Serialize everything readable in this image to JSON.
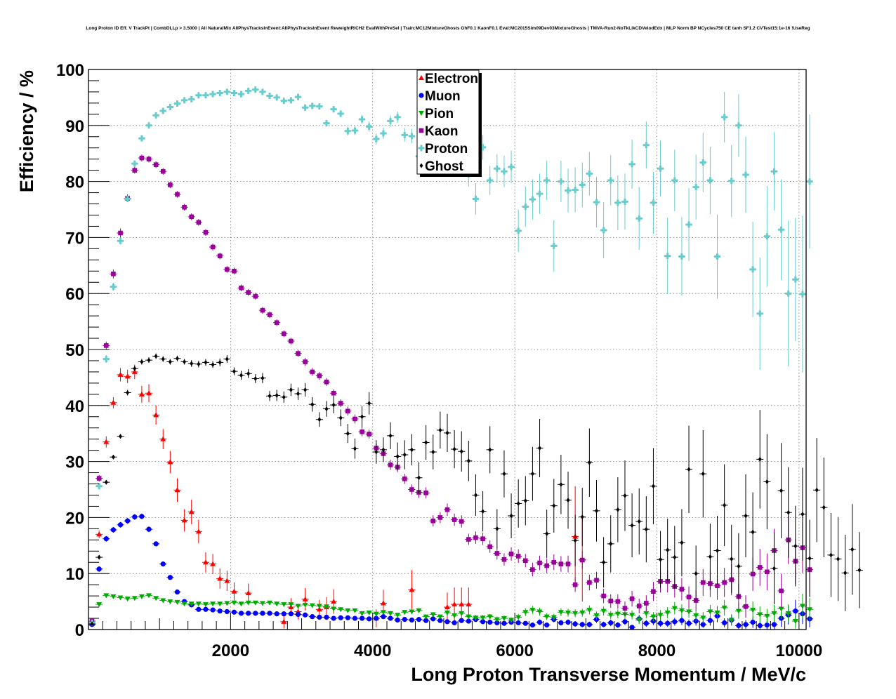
{
  "chart_data": {
    "type": "scatter",
    "title": "Long Proton ID Eff. V TrackPt | CombDLLp > 3.5000 | All NaturalMix AllPhysTracksInEvent:AllPhysTracksInEvent ReweightRICH2 EvalWithPreSel | Train:MC12MixtureGhosts GhF0.1 KaonF0.1 Eval:MC2015Sim09Dev03MixtureGhosts | TMVA-Run2-NoTkLikCDVelodEdx | MLP Norm BP NCycles750 CE tanh SF1.2 CVTest15:1e-16 !UseReg",
    "xlabel": "Long Proton Transverse Momentum / MeV/c",
    "ylabel": "Efficiency / %",
    "xlim": [
      0,
      10100
    ],
    "ylim": [
      0,
      100
    ],
    "xticks": [
      "2000",
      "4000",
      "6000",
      "8000",
      "10000"
    ],
    "yticks": [
      "0",
      "10",
      "20",
      "30",
      "40",
      "50",
      "60",
      "70",
      "80",
      "90",
      "100"
    ],
    "grid": true,
    "legend_position": "top-center",
    "bin_width": 100,
    "x_start": 50,
    "series": [
      {
        "name": "Electron",
        "color": "#ff0000",
        "marker": "triangle-up",
        "values": [
          1.0,
          17.0,
          33.5,
          40.5,
          45.5,
          45.2,
          46.0,
          42.0,
          42.2,
          38.3,
          34.0,
          29.9,
          24.9,
          19.5,
          21.0,
          17.5,
          12.0,
          11.7,
          9.1,
          8.7,
          6.8,
          null,
          6.5,
          null,
          null,
          null,
          null,
          1.4,
          4.0,
          3.2,
          5.4,
          null,
          3.6,
          4.0,
          5.0,
          null,
          null,
          null,
          null,
          null,
          2.0,
          4.7,
          null,
          null,
          null,
          7.1,
          null,
          null,
          null,
          null,
          4.0,
          4.5,
          4.5,
          4.5,
          null,
          null,
          null,
          null,
          null,
          null,
          null,
          null,
          null,
          null,
          null,
          null,
          null,
          null,
          16.6,
          12.5
        ],
        "errors": [
          0.5,
          0.7,
          1.0,
          1.0,
          1.2,
          1.2,
          1.3,
          1.5,
          1.6,
          1.7,
          1.8,
          2.0,
          2.1,
          2.0,
          2.2,
          2.1,
          1.8,
          1.8,
          1.8,
          1.8,
          1.6,
          0,
          1.7,
          0,
          0,
          0,
          0,
          1.2,
          1.6,
          1.4,
          2.0,
          0,
          1.7,
          1.8,
          2.2,
          0,
          0,
          0,
          0,
          0,
          1.6,
          2.4,
          0,
          0,
          0,
          3.5,
          0,
          0,
          0,
          0,
          2.6,
          3.0,
          3.0,
          3.0,
          0,
          0,
          0,
          0,
          0,
          0,
          0,
          0,
          0,
          0,
          0,
          0,
          0,
          0,
          9.0,
          7.5
        ]
      },
      {
        "name": "Muon",
        "color": "#0000ff",
        "marker": "circle",
        "values": [
          0.9,
          10.8,
          16.2,
          17.8,
          18.7,
          19.4,
          20.1,
          20.2,
          17.9,
          15.3,
          11.7,
          9.3,
          6.7,
          5.0,
          4.4,
          3.6,
          3.6,
          3.5,
          3.3,
          3.2,
          3.1,
          2.9,
          2.9,
          2.9,
          2.9,
          2.9,
          2.8,
          2.8,
          2.8,
          2.7,
          2.6,
          2.3,
          2.2,
          2.2,
          2.0,
          2.1,
          2.1,
          2.0,
          2.0,
          1.9,
          2.0,
          2.3,
          2.0,
          1.7,
          1.8,
          1.7,
          1.8,
          1.6,
          1.9,
          1.6,
          1.4,
          1.2,
          1.6,
          1.5,
          1.8,
          1.4,
          1.3,
          1.2,
          1.1,
          1.3,
          1.2,
          1.1,
          0.8,
          1.3,
          0.8,
          1.8,
          1.2,
          1.3,
          1.0,
          0.9,
          0.9,
          1.8,
          0.9,
          1.2,
          0.8,
          1.4,
          0.4,
          1.9,
          1.1,
          1.5,
          1.1,
          1.1,
          1.4,
          1.6,
          1.1,
          1.5,
          0.9,
          1.6,
          2.4,
          1.2,
          1.7,
          0.7,
          0.9,
          1.3,
          0.7,
          0.8,
          0.9,
          2.0,
          2.6,
          3.3,
          2.8,
          1.9
        ],
        "errors": [
          0.3,
          0.5,
          0.5,
          0.5,
          0.5,
          0.5,
          0.5,
          0.5,
          0.5,
          0.4,
          0.4,
          0.4,
          0.3,
          0.3,
          0.3,
          0.2,
          0.2,
          0.2,
          0.2,
          0.2,
          0.2,
          0.2,
          0.2,
          0.2,
          0.2,
          0.2,
          0.2,
          0.2,
          0.2,
          0.2,
          0.2,
          0.2,
          0.2,
          0.2,
          0.2,
          0.2,
          0.3,
          0.3,
          0.3,
          0.3,
          0.3,
          0.3,
          0.3,
          0.3,
          0.3,
          0.3,
          0.3,
          0.3,
          0.3,
          0.3,
          0.3,
          0.3,
          0.4,
          0.4,
          0.4,
          0.4,
          0.4,
          0.4,
          0.4,
          0.4,
          0.4,
          0.4,
          0.4,
          0.5,
          0.4,
          0.5,
          0.5,
          0.5,
          0.5,
          0.5,
          0.5,
          0.6,
          0.5,
          0.6,
          0.5,
          0.6,
          0.4,
          0.7,
          0.6,
          0.7,
          0.6,
          0.6,
          0.7,
          0.8,
          0.7,
          0.8,
          0.6,
          0.9,
          1.1,
          0.8,
          1.0,
          0.6,
          0.8,
          1.0,
          0.7,
          0.8,
          0.9,
          1.5,
          1.7,
          2.0,
          1.8,
          1.5
        ]
      },
      {
        "name": "Pion",
        "color": "#00aa00",
        "marker": "triangle-down",
        "values": [
          1.0,
          4.5,
          6.1,
          5.9,
          5.7,
          5.5,
          5.6,
          5.9,
          6.1,
          5.6,
          5.2,
          5.0,
          4.9,
          4.6,
          4.6,
          4.6,
          4.5,
          4.6,
          4.6,
          4.7,
          4.8,
          4.6,
          4.8,
          4.8,
          4.7,
          4.8,
          4.6,
          4.5,
          4.5,
          4.2,
          4.4,
          4.3,
          4.2,
          4.1,
          3.7,
          3.6,
          3.4,
          3.4,
          2.9,
          3.0,
          2.8,
          3.1,
          2.9,
          2.6,
          3.1,
          3.2,
          3.4,
          2.3,
          2.7,
          2.3,
          3.0,
          2.5,
          2.9,
          2.3,
          2.1,
          2.1,
          2.3,
          1.8,
          2.0,
          1.7,
          2.2,
          3.1,
          3.5,
          3.2,
          2.3,
          2.2,
          3.1,
          3.0,
          2.9,
          3.0,
          3.5,
          2.5,
          3.3,
          2.6,
          2.8,
          2.7,
          2.6,
          1.7,
          2.9,
          2.3,
          2.6,
          3.0,
          3.8,
          3.4,
          3.2,
          2.5,
          2.1,
          3.2,
          3.0,
          3.9,
          1.7,
          3.3,
          4.0,
          3.5,
          2.7,
          2.4,
          2.9,
          3.7,
          2.9,
          1.5,
          4.2,
          3.6
        ],
        "errors": [
          0.3,
          0.3,
          0.3,
          0.3,
          0.3,
          0.3,
          0.3,
          0.3,
          0.3,
          0.3,
          0.3,
          0.3,
          0.3,
          0.3,
          0.3,
          0.3,
          0.3,
          0.3,
          0.3,
          0.3,
          0.3,
          0.3,
          0.3,
          0.3,
          0.3,
          0.3,
          0.3,
          0.3,
          0.3,
          0.3,
          0.3,
          0.3,
          0.3,
          0.3,
          0.3,
          0.3,
          0.3,
          0.3,
          0.3,
          0.3,
          0.4,
          0.4,
          0.4,
          0.4,
          0.4,
          0.4,
          0.4,
          0.4,
          0.4,
          0.4,
          0.5,
          0.5,
          0.5,
          0.5,
          0.5,
          0.5,
          0.5,
          0.5,
          0.5,
          0.5,
          0.6,
          0.7,
          0.7,
          0.7,
          0.6,
          0.6,
          0.7,
          0.7,
          0.7,
          0.7,
          0.8,
          0.7,
          0.8,
          0.7,
          0.8,
          0.8,
          0.8,
          0.7,
          0.9,
          0.8,
          0.9,
          1.0,
          1.1,
          1.1,
          1.1,
          1.0,
          1.0,
          1.2,
          1.2,
          1.4,
          1.0,
          1.4,
          1.6,
          1.5,
          1.4,
          1.3,
          1.5,
          1.8,
          1.6,
          1.3,
          2.2,
          2.0
        ]
      },
      {
        "name": "Kaon",
        "color": "#990099",
        "marker": "square",
        "values": [
          1.5,
          27.0,
          50.7,
          63.5,
          70.8,
          77.0,
          82.0,
          84.2,
          84.0,
          83.0,
          81.8,
          79.4,
          77.7,
          75.4,
          73.7,
          72.7,
          70.9,
          68.3,
          66.7,
          64.3,
          64.0,
          61.0,
          60.2,
          59.5,
          57.0,
          56.2,
          54.8,
          52.8,
          51.5,
          49.3,
          47.8,
          46.0,
          45.3,
          44.2,
          42.2,
          40.4,
          39.0,
          37.6,
          35.3,
          34.9,
          32.4,
          31.4,
          29.4,
          29.0,
          26.9,
          25.0,
          24.5,
          24.4,
          19.4,
          20.0,
          21.4,
          19.6,
          19.3,
          16.1,
          16.4,
          16.2,
          14.8,
          13.6,
          12.5,
          13.5,
          13.1,
          12.3,
          10.7,
          11.9,
          11.4,
          12.0,
          11.7,
          11.7,
          8.0,
          12.4,
          8.4,
          8.8,
          6.0,
          5.1,
          5.0,
          3.8,
          5.5,
          4.2,
          4.7,
          6.8,
          8.6,
          8.6,
          7.7,
          7.2,
          5.8,
          5.2,
          8.4,
          8.2,
          7.8,
          8.4,
          8.9,
          5.9,
          4.1,
          9.9,
          11.1,
          10.3,
          14.1,
          6.9,
          16.0,
          12.2,
          14.6,
          10.7
        ],
        "errors": [
          0.4,
          0.6,
          0.7,
          0.8,
          0.8,
          0.7,
          0.6,
          0.6,
          0.6,
          0.6,
          0.6,
          0.6,
          0.6,
          0.6,
          0.6,
          0.6,
          0.6,
          0.6,
          0.6,
          0.6,
          0.6,
          0.6,
          0.6,
          0.6,
          0.6,
          0.6,
          0.6,
          0.6,
          0.6,
          0.6,
          0.7,
          0.7,
          0.7,
          0.7,
          0.7,
          0.7,
          0.8,
          0.8,
          0.8,
          0.8,
          0.8,
          0.8,
          0.9,
          0.9,
          0.9,
          0.9,
          1.0,
          1.0,
          1.0,
          1.0,
          1.1,
          1.1,
          1.1,
          1.0,
          1.1,
          1.1,
          1.1,
          1.1,
          1.1,
          1.2,
          1.2,
          1.2,
          1.2,
          1.3,
          1.3,
          1.4,
          1.4,
          1.5,
          1.3,
          1.6,
          1.4,
          1.5,
          1.3,
          1.2,
          1.3,
          1.2,
          1.4,
          1.3,
          1.4,
          1.7,
          2.0,
          2.0,
          2.0,
          2.0,
          1.9,
          1.8,
          2.4,
          2.4,
          2.5,
          2.6,
          2.8,
          2.3,
          2.0,
          3.0,
          3.3,
          3.3,
          3.9,
          3.0,
          4.3,
          4.0,
          4.5,
          4.0
        ]
      },
      {
        "name": "Proton",
        "color": "#66cccc",
        "marker": "cross",
        "values": [
          1.2,
          25.6,
          48.3,
          61.2,
          69.4,
          76.9,
          83.2,
          87.7,
          90.0,
          91.8,
          92.6,
          93.3,
          93.9,
          94.5,
          94.7,
          95.4,
          95.4,
          95.6,
          95.8,
          96.0,
          95.8,
          95.6,
          96.2,
          96.4,
          96.0,
          95.3,
          95.0,
          94.4,
          94.5,
          95.1,
          93.2,
          93.5,
          93.4,
          90.4,
          92.9,
          92.1,
          89.0,
          89.1,
          91.1,
          89.8,
          87.6,
          88.6,
          90.8,
          91.5,
          88.3,
          88.1,
          84.5,
          89.8,
          85.4,
          83.3,
          85.3,
          82.9,
          84.3,
          81.3,
          76.9,
          86.1,
          80.2,
          82.3,
          81.8,
          82.6,
          71.2,
          75.5,
          76.8,
          77.8,
          80.2,
          68.5,
          80.0,
          78.4,
          78.5,
          79.4,
          81.4,
          76.3,
          71.3,
          80.2,
          76.2,
          76.4,
          83.1,
          73.4,
          86.5,
          76.2,
          82.3,
          66.7,
          80.2,
          66.6,
          72.3,
          79.0,
          83.4,
          80.2,
          66.6,
          91.5,
          80.1,
          90.0,
          81.2,
          64.3,
          56.4,
          70.2,
          81.8,
          71.4,
          60.0,
          62.5,
          59.9,
          80.0
        ],
        "errors": [
          0.4,
          0.6,
          0.7,
          0.7,
          0.6,
          0.5,
          0.4,
          0.4,
          0.3,
          0.3,
          0.3,
          0.3,
          0.3,
          0.3,
          0.3,
          0.3,
          0.3,
          0.3,
          0.3,
          0.3,
          0.3,
          0.3,
          0.3,
          0.3,
          0.3,
          0.4,
          0.4,
          0.4,
          0.4,
          0.4,
          0.5,
          0.5,
          0.5,
          0.6,
          0.6,
          0.6,
          0.8,
          0.8,
          0.8,
          0.9,
          1.0,
          1.0,
          1.0,
          1.0,
          1.2,
          1.3,
          1.5,
          1.3,
          1.6,
          1.8,
          1.8,
          2.0,
          2.0,
          2.2,
          2.8,
          2.2,
          2.6,
          2.6,
          2.8,
          2.9,
          3.8,
          3.6,
          3.6,
          3.6,
          3.5,
          4.6,
          3.7,
          3.9,
          4.0,
          4.0,
          3.9,
          4.5,
          5.0,
          4.5,
          4.9,
          5.0,
          4.4,
          5.6,
          4.2,
          5.5,
          5.0,
          6.8,
          5.5,
          7.0,
          6.5,
          5.8,
          5.3,
          6.0,
          7.5,
          4.5,
          6.4,
          5.6,
          6.8,
          8.5,
          10.0,
          9.0,
          7.0,
          9.0,
          13.0,
          11.0,
          14.0,
          12.0
        ]
      },
      {
        "name": "Ghost",
        "color": "#000000",
        "marker": "diamond",
        "values": [
          1.0,
          12.9,
          26.3,
          30.8,
          34.5,
          42.3,
          46.6,
          47.8,
          48.1,
          48.8,
          48.3,
          47.8,
          48.4,
          47.8,
          47.5,
          47.4,
          47.7,
          47.3,
          47.7,
          48.3,
          46.1,
          45.4,
          45.7,
          44.8,
          44.9,
          41.7,
          41.8,
          41.5,
          42.8,
          42.1,
          42.8,
          40.2,
          37.5,
          39.4,
          40.1,
          37.8,
          35.0,
          32.3,
          38.0,
          40.4,
          31.7,
          32.1,
          34.6,
          30.9,
          31.2,
          32.1,
          27.1,
          33.4,
          31.7,
          35.6,
          35.1,
          32.2,
          31.8,
          30.1,
          24.0,
          21.1,
          32.1,
          18.0,
          27.8,
          20.3,
          22.5,
          23.0,
          27.8,
          32.4,
          17.1,
          22.1,
          25.9,
          23.1,
          15.9,
          20.1,
          29.8,
          21.2,
          12.0,
          15.3,
          21.4,
          23.9,
          18.6,
          19.3,
          17.9,
          25.6,
          12.5,
          14.2,
          12.9,
          15.5,
          28.6,
          10.0,
          27.8,
          13.0,
          14.1,
          22.2,
          12.6,
          11.3,
          20.3,
          17.4,
          30.4,
          26.4,
          10.9,
          24.8,
          20.9,
          14.9,
          20.6,
          12.7,
          24.9,
          21.8,
          13.3,
          12.6,
          10.1,
          14.3,
          10.6
        ],
        "errors": [
          0.3,
          0.4,
          0.4,
          0.4,
          0.4,
          0.5,
          0.5,
          0.5,
          0.5,
          0.5,
          0.5,
          0.5,
          0.5,
          0.5,
          0.6,
          0.6,
          0.6,
          0.6,
          0.7,
          0.7,
          0.7,
          0.8,
          0.8,
          0.8,
          0.9,
          0.9,
          1.0,
          1.0,
          1.1,
          1.1,
          1.2,
          1.3,
          1.3,
          1.4,
          1.5,
          1.5,
          1.7,
          1.8,
          1.9,
          2.0,
          2.1,
          2.2,
          2.4,
          2.5,
          2.6,
          2.8,
          2.8,
          3.1,
          3.1,
          3.3,
          3.4,
          3.4,
          3.6,
          3.6,
          3.7,
          3.6,
          4.2,
          3.5,
          4.2,
          4.0,
          4.3,
          4.4,
          4.8,
          5.2,
          4.3,
          4.8,
          5.3,
          5.1,
          4.6,
          5.2,
          6.1,
          5.5,
          4.5,
          5.1,
          5.8,
          6.3,
          5.7,
          5.9,
          5.9,
          6.8,
          5.1,
          5.6,
          5.6,
          6.0,
          7.8,
          5.0,
          7.8,
          5.9,
          6.2,
          7.3,
          6.1,
          5.9,
          7.4,
          7.1,
          8.8,
          8.5,
          6.4,
          8.5,
          8.1,
          7.2,
          8.3,
          6.9,
          9.3,
          8.9,
          7.5,
          7.5,
          6.8,
          8.1,
          6.8
        ]
      }
    ]
  }
}
